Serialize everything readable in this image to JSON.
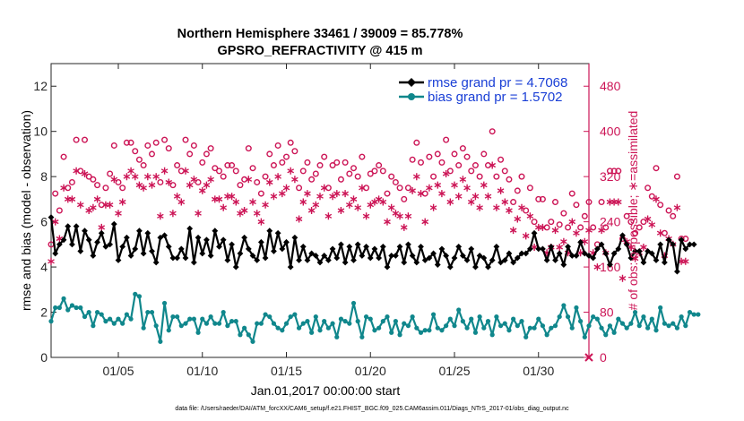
{
  "chart_data": {
    "type": "line",
    "title_line1": "Northern Hemisphere 33461 / 39009 = 85.778%",
    "title_line2": "GPSRO_REFRACTIVITY @ 415 m",
    "xlabel": "Jan.01,2017 00:00:00 start",
    "ylabel_left": "rmse and bias (model - observation)",
    "ylabel_right": "# of obs: o=possible; ∗=assimilated",
    "footnote": "data file: /Users/raeder/DAI/ATM_forcXX/CAM6_setup/f.e21.FHIST_BGC.f09_025.CAM6assim.011/Diags_NTrS_2017-01/obs_diag_output.nc",
    "xlim": [
      1.0,
      33.0
    ],
    "ylim_left": [
      0,
      13
    ],
    "ylim_right": [
      0,
      520
    ],
    "x_ticks": [
      5,
      10,
      15,
      20,
      25,
      30
    ],
    "x_tick_labels": [
      "01/05",
      "01/10",
      "01/15",
      "01/20",
      "01/25",
      "01/30"
    ],
    "y_ticks_left": [
      0,
      2,
      4,
      6,
      8,
      10,
      12
    ],
    "y_tick_labels_left": [
      "0",
      "2",
      "4",
      "6",
      "8",
      "10",
      "12"
    ],
    "y_ticks_right": [
      0,
      80,
      160,
      240,
      320,
      400,
      480
    ],
    "y_tick_labels_right": [
      "0",
      "80",
      "160",
      "240",
      "320",
      "400",
      "480"
    ],
    "legend_location": "top-right",
    "colors": {
      "rmse": "#000000",
      "bias": "#10878c",
      "obs": "#cc1556",
      "legend_text": "#1a3fd6"
    },
    "x_start": 1.0,
    "x_step": 0.25,
    "series": [
      {
        "name": "rmse grand pr = 4.7068",
        "axis": "left",
        "values": [
          6.2,
          4.6,
          5.0,
          5.2,
          5.8,
          5.0,
          5.8,
          4.7,
          5.6,
          5.2,
          4.5,
          5.1,
          5.5,
          4.9,
          5.0,
          5.9,
          4.3,
          4.9,
          5.3,
          4.5,
          4.8,
          5.6,
          4.6,
          5.5,
          4.7,
          4.2,
          5.3,
          5.4,
          4.9,
          4.4,
          4.4,
          4.8,
          4.4,
          5.7,
          4.2,
          5.3,
          4.6,
          5.2,
          4.5,
          5.6,
          4.9,
          5.2,
          4.3,
          5.0,
          4.0,
          4.6,
          5.3,
          4.8,
          4.5,
          4.3,
          5.1,
          4.4,
          5.6,
          4.7,
          5.5,
          4.8,
          5.1,
          4.0,
          5.3,
          4.3,
          4.9,
          4.3,
          4.6,
          4.5,
          4.2,
          4.5,
          4.3,
          4.8,
          4.4,
          5.0,
          4.2,
          4.9,
          4.3,
          5.0,
          4.5,
          4.9,
          4.4,
          4.8,
          4.4,
          4.9,
          4.0,
          4.5,
          4.5,
          4.9,
          4.2,
          5.0,
          4.5,
          4.2,
          4.9,
          4.3,
          4.4,
          4.6,
          4.1,
          4.8,
          4.5,
          4.0,
          4.4,
          4.9,
          4.5,
          4.3,
          4.8,
          4.0,
          4.5,
          4.4,
          4.0,
          4.3,
          4.9,
          4.2,
          4.3,
          4.6,
          4.2,
          4.4,
          4.6,
          4.6,
          4.8,
          5.5,
          4.8,
          4.8,
          4.3,
          4.9,
          4.3,
          4.6,
          4.1,
          4.9,
          4.5,
          4.5,
          5.1,
          4.6,
          4.5,
          4.4,
          4.8,
          5.0,
          4.6,
          4.1,
          4.6,
          4.8,
          5.4,
          5.0,
          4.4,
          4.7,
          4.7,
          4.2,
          4.7,
          4.6,
          4.3,
          5.0,
          4.2,
          5.2,
          5.0,
          3.8,
          5.2,
          4.8,
          5.0,
          5.0
        ],
        "marker": "diamond"
      },
      {
        "name": "bias grand pr = 1.5702",
        "axis": "left",
        "values": [
          1.6,
          2.2,
          2.2,
          2.6,
          2.1,
          2.3,
          2.2,
          2.2,
          1.8,
          2.0,
          1.4,
          2.0,
          1.9,
          1.6,
          1.7,
          1.5,
          1.7,
          1.5,
          1.9,
          1.7,
          2.8,
          2.7,
          1.3,
          2.0,
          2.0,
          1.4,
          0.7,
          2.4,
          1.2,
          1.8,
          1.8,
          1.4,
          1.5,
          1.7,
          1.7,
          1.1,
          1.7,
          1.5,
          1.8,
          1.5,
          1.5,
          2.0,
          1.4,
          1.6,
          1.6,
          1.0,
          1.3,
          1.0,
          0.7,
          1.5,
          1.5,
          1.9,
          1.8,
          1.5,
          1.3,
          1.2,
          1.5,
          1.8,
          1.9,
          1.3,
          1.5,
          1.6,
          1.1,
          1.8,
          1.2,
          1.6,
          1.3,
          1.5,
          0.9,
          1.7,
          1.6,
          1.5,
          2.4,
          1.6,
          0.9,
          1.8,
          1.7,
          1.2,
          1.3,
          1.6,
          1.8,
          1.1,
          1.6,
          1.0,
          1.5,
          1.4,
          1.8,
          1.3,
          1.1,
          1.2,
          1.2,
          1.9,
          1.3,
          1.2,
          1.4,
          1.7,
          1.4,
          2.1,
          1.6,
          1.3,
          1.7,
          1.1,
          1.8,
          1.3,
          1.6,
          1.0,
          1.8,
          1.4,
          1.5,
          1.2,
          1.7,
          1.4,
          1.6,
          0.9,
          1.3,
          1.3,
          1.7,
          1.4,
          1.0,
          1.3,
          1.4,
          1.8,
          2.3,
          1.8,
          1.3,
          2.2,
          1.6,
          0.9,
          1.4,
          1.8,
          1.7,
          1.3,
          1.0,
          1.4,
          1.1,
          1.7,
          1.5,
          1.3,
          1.5,
          2.0,
          1.4,
          1.8,
          1.3,
          1.7,
          1.2,
          2.2,
          1.5,
          1.4,
          1.5,
          1.3,
          1.8,
          1.4,
          2.0,
          1.9,
          1.9
        ],
        "marker": "circle"
      },
      {
        "name": "possible",
        "axis": "right",
        "values": [
          200,
          290,
          260,
          355,
          300,
          310,
          385,
          330,
          385,
          320,
          315,
          305,
          270,
          300,
          325,
          375,
          310,
          300,
          380,
          380,
          365,
          350,
          340,
          375,
          360,
          380,
          310,
          385,
          370,
          305,
          340,
          330,
          385,
          360,
          375,
          310,
          345,
          360,
          370,
          335,
          330,
          320,
          340,
          340,
          330,
          305,
          315,
          370,
          335,
          310,
          290,
          320,
          360,
          340,
          375,
          345,
          355,
          380,
          365,
          300,
          330,
          345,
          315,
          325,
          340,
          355,
          300,
          340,
          345,
          315,
          345,
          325,
          335,
          320,
          355,
          300,
          325,
          330,
          340,
          330,
          290,
          320,
          310,
          300,
          280,
          300,
          350,
          380,
          345,
          290,
          355,
          320,
          360,
          345,
          385,
          330,
          360,
          340,
          370,
          355,
          330,
          340,
          320,
          360,
          340,
          400,
          320,
          350,
          330,
          315,
          275,
          295,
          320,
          260,
          300,
          240,
          280,
          280,
          230,
          240,
          275,
          235,
          255,
          230,
          290,
          270,
          230,
          250,
          275,
          230,
          200,
          275,
          230,
          330,
          330,
          330,
          210,
          250,
          240,
          220,
          230,
          240,
          300,
          285,
          335,
          270,
          220,
          260,
          250,
          320,
          210,
          210
        ],
        "marker": "circle-open"
      },
      {
        "name": "assimilated",
        "axis": "right",
        "values": [
          170,
          240,
          210,
          300,
          280,
          280,
          330,
          270,
          325,
          260,
          265,
          280,
          230,
          270,
          270,
          315,
          255,
          275,
          320,
          330,
          320,
          305,
          300,
          320,
          305,
          320,
          250,
          330,
          310,
          255,
          285,
          275,
          330,
          305,
          315,
          255,
          295,
          305,
          315,
          280,
          280,
          265,
          285,
          285,
          275,
          255,
          260,
          315,
          275,
          255,
          240,
          270,
          310,
          285,
          320,
          290,
          300,
          330,
          315,
          245,
          275,
          290,
          260,
          270,
          285,
          300,
          250,
          285,
          290,
          260,
          290,
          270,
          280,
          265,
          300,
          250,
          270,
          275,
          280,
          275,
          240,
          265,
          255,
          250,
          230,
          250,
          295,
          320,
          290,
          240,
          300,
          265,
          305,
          290,
          325,
          275,
          305,
          285,
          315,
          300,
          275,
          285,
          265,
          305,
          285,
          340,
          265,
          295,
          275,
          260,
          225,
          245,
          265,
          215,
          250,
          195,
          230,
          230,
          185,
          195,
          225,
          195,
          205,
          185,
          240,
          220,
          185,
          205,
          225,
          185,
          160,
          225,
          185,
          275,
          275,
          275,
          140,
          205,
          195,
          175,
          185,
          195,
          245,
          235,
          280,
          220,
          180,
          210,
          200,
          265,
          170,
          170
        ],
        "marker": "asterisk"
      }
    ]
  }
}
